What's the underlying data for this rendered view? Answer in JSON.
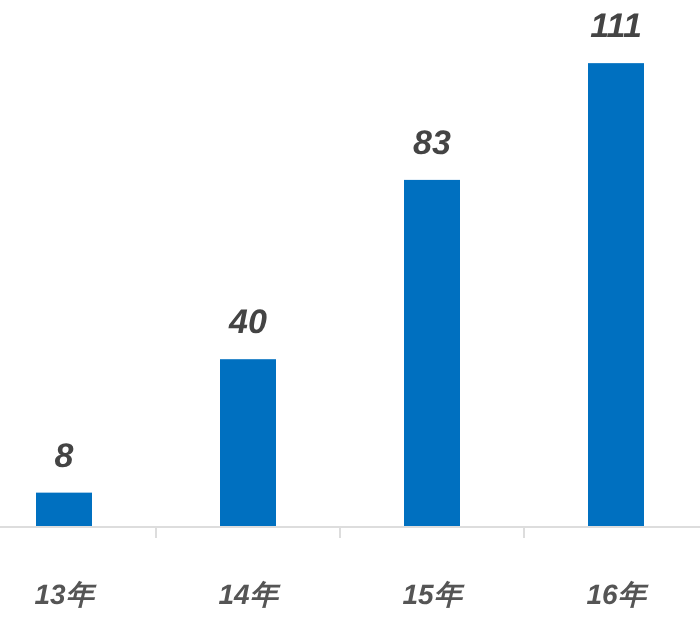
{
  "chart_data": {
    "type": "bar",
    "categories": [
      "13年",
      "14年",
      "15年",
      "16年"
    ],
    "values": [
      8,
      40,
      83,
      111
    ],
    "color": "#0070c0",
    "data_labels": true
  }
}
